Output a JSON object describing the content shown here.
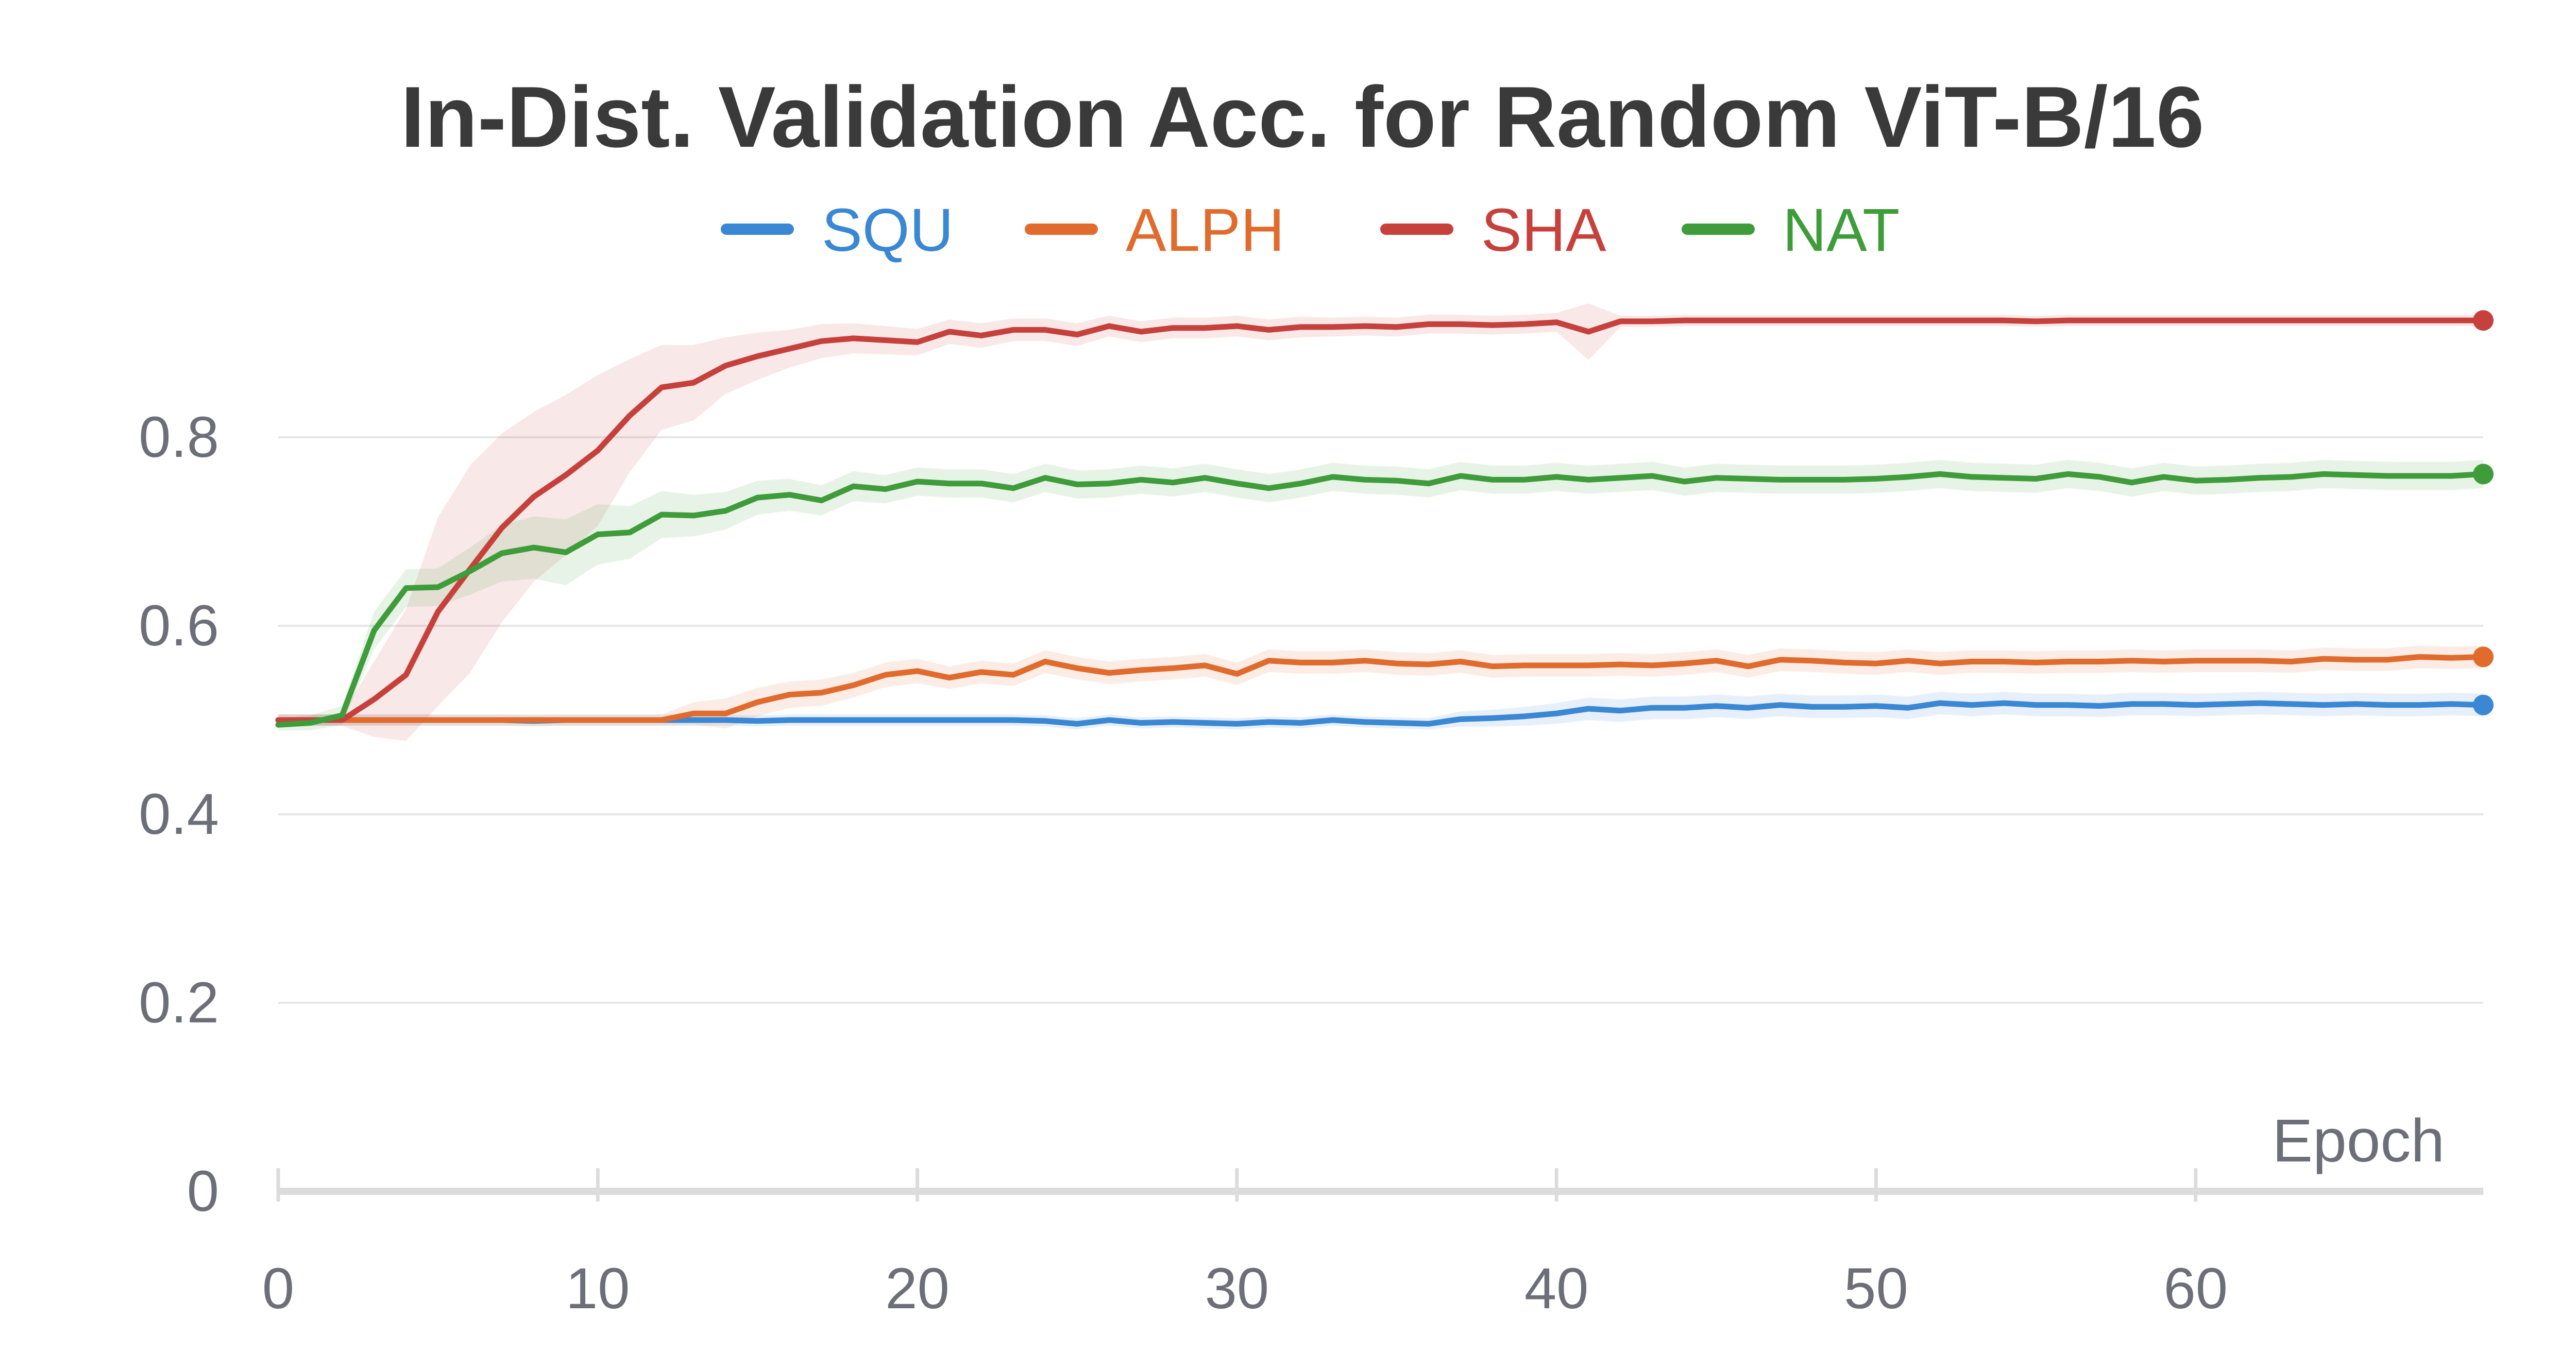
{
  "chart_data": {
    "type": "line",
    "title": "In-Dist. Validation Acc. for Random ViT-B/16",
    "xlabel": "Epoch",
    "ylabel": "",
    "xlim": [
      0,
      69
    ],
    "ylim": [
      0,
      0.95
    ],
    "x_ticks": [
      0,
      10,
      20,
      30,
      40,
      50,
      60
    ],
    "y_ticks": [
      0,
      0.2,
      0.4,
      0.6,
      0.8
    ],
    "x_tick_labels": [
      "0",
      "10",
      "20",
      "30",
      "40",
      "50",
      "60"
    ],
    "y_tick_labels": [
      "0",
      "0.2",
      "0.4",
      "0.6",
      "0.8"
    ],
    "grid": true,
    "legend_position": "top-center",
    "series": [
      {
        "name": "SQU",
        "color": "#3a87d4",
        "values": [
          0.5,
          0.5,
          0.5,
          0.5,
          0.5,
          0.5,
          0.5,
          0.5,
          0.499,
          0.5,
          0.5,
          0.5,
          0.5,
          0.5,
          0.5,
          0.499,
          0.5,
          0.5,
          0.5,
          0.5,
          0.5,
          0.5,
          0.5,
          0.5,
          0.499,
          0.496,
          0.5,
          0.497,
          0.498,
          0.497,
          0.496,
          0.498,
          0.497,
          0.5,
          0.498,
          0.497,
          0.496,
          0.501,
          0.502,
          0.504,
          0.507,
          0.512,
          0.51,
          0.513,
          0.513,
          0.515,
          0.513,
          0.516,
          0.514,
          0.514,
          0.515,
          0.513,
          0.518,
          0.516,
          0.518,
          0.516,
          0.516,
          0.515,
          0.517,
          0.517,
          0.516,
          0.517,
          0.518,
          0.517,
          0.516,
          0.517,
          0.516,
          0.516,
          0.517,
          0.516
        ],
        "band": [
          0.006,
          0.006,
          0.006,
          0.006,
          0.006,
          0.006,
          0.006,
          0.006,
          0.006,
          0.006,
          0.006,
          0.006,
          0.006,
          0.006,
          0.006,
          0.006,
          0.006,
          0.006,
          0.006,
          0.006,
          0.006,
          0.006,
          0.006,
          0.006,
          0.006,
          0.006,
          0.006,
          0.006,
          0.006,
          0.006,
          0.006,
          0.006,
          0.006,
          0.006,
          0.006,
          0.006,
          0.006,
          0.008,
          0.009,
          0.01,
          0.011,
          0.012,
          0.012,
          0.012,
          0.012,
          0.012,
          0.012,
          0.012,
          0.012,
          0.012,
          0.012,
          0.012,
          0.012,
          0.012,
          0.012,
          0.012,
          0.012,
          0.012,
          0.012,
          0.012,
          0.012,
          0.012,
          0.012,
          0.012,
          0.012,
          0.012,
          0.012,
          0.012,
          0.012,
          0.012
        ]
      },
      {
        "name": "ALPH",
        "color": "#e06b2c",
        "values": [
          0.5,
          0.5,
          0.5,
          0.5,
          0.5,
          0.5,
          0.5,
          0.5,
          0.5,
          0.5,
          0.5,
          0.5,
          0.5,
          0.507,
          0.507,
          0.519,
          0.527,
          0.529,
          0.537,
          0.548,
          0.552,
          0.545,
          0.551,
          0.548,
          0.562,
          0.555,
          0.55,
          0.553,
          0.555,
          0.558,
          0.549,
          0.563,
          0.561,
          0.561,
          0.563,
          0.56,
          0.559,
          0.562,
          0.557,
          0.558,
          0.558,
          0.558,
          0.559,
          0.558,
          0.56,
          0.563,
          0.557,
          0.564,
          0.563,
          0.561,
          0.56,
          0.563,
          0.56,
          0.562,
          0.562,
          0.561,
          0.562,
          0.562,
          0.563,
          0.562,
          0.563,
          0.563,
          0.563,
          0.562,
          0.565,
          0.564,
          0.564,
          0.567,
          0.566,
          0.567
        ],
        "band": [
          0.006,
          0.006,
          0.006,
          0.006,
          0.006,
          0.006,
          0.006,
          0.006,
          0.006,
          0.006,
          0.006,
          0.006,
          0.006,
          0.012,
          0.016,
          0.015,
          0.014,
          0.014,
          0.013,
          0.013,
          0.013,
          0.012,
          0.012,
          0.012,
          0.012,
          0.012,
          0.012,
          0.012,
          0.012,
          0.012,
          0.012,
          0.012,
          0.012,
          0.012,
          0.012,
          0.012,
          0.012,
          0.012,
          0.012,
          0.012,
          0.012,
          0.012,
          0.012,
          0.012,
          0.012,
          0.012,
          0.012,
          0.012,
          0.012,
          0.012,
          0.012,
          0.012,
          0.012,
          0.012,
          0.012,
          0.012,
          0.012,
          0.012,
          0.012,
          0.012,
          0.012,
          0.012,
          0.012,
          0.012,
          0.012,
          0.012,
          0.012,
          0.012,
          0.012,
          0.012
        ]
      },
      {
        "name": "SHA",
        "color": "#c6403c",
        "values": [
          0.5,
          0.5,
          0.5,
          0.522,
          0.548,
          0.615,
          0.66,
          0.704,
          0.737,
          0.76,
          0.786,
          0.823,
          0.853,
          0.858,
          0.876,
          0.886,
          0.894,
          0.902,
          0.905,
          0.903,
          0.901,
          0.912,
          0.908,
          0.914,
          0.914,
          0.909,
          0.918,
          0.912,
          0.916,
          0.916,
          0.918,
          0.914,
          0.917,
          0.917,
          0.918,
          0.917,
          0.92,
          0.92,
          0.919,
          0.92,
          0.922,
          0.912,
          0.923,
          0.923,
          0.924,
          0.924,
          0.924,
          0.924,
          0.924,
          0.924,
          0.924,
          0.924,
          0.924,
          0.924,
          0.924,
          0.923,
          0.924,
          0.924,
          0.924,
          0.924,
          0.924,
          0.924,
          0.924,
          0.924,
          0.924,
          0.924,
          0.924,
          0.924,
          0.924,
          0.924
        ],
        "band": [
          0.006,
          0.006,
          0.006,
          0.04,
          0.07,
          0.1,
          0.11,
          0.1,
          0.09,
          0.085,
          0.08,
          0.06,
          0.045,
          0.04,
          0.03,
          0.025,
          0.02,
          0.018,
          0.016,
          0.015,
          0.014,
          0.013,
          0.013,
          0.012,
          0.012,
          0.012,
          0.011,
          0.011,
          0.011,
          0.011,
          0.011,
          0.011,
          0.011,
          0.01,
          0.01,
          0.01,
          0.01,
          0.01,
          0.01,
          0.01,
          0.01,
          0.03,
          0.006,
          0.006,
          0.006,
          0.006,
          0.006,
          0.006,
          0.006,
          0.006,
          0.006,
          0.006,
          0.006,
          0.006,
          0.006,
          0.006,
          0.006,
          0.006,
          0.006,
          0.006,
          0.006,
          0.006,
          0.006,
          0.006,
          0.006,
          0.006,
          0.006,
          0.006,
          0.006,
          0.006
        ]
      },
      {
        "name": "NAT",
        "color": "#3e9c3a",
        "values": [
          0.495,
          0.497,
          0.505,
          0.595,
          0.64,
          0.641,
          0.658,
          0.677,
          0.683,
          0.678,
          0.697,
          0.699,
          0.718,
          0.717,
          0.722,
          0.736,
          0.739,
          0.733,
          0.748,
          0.745,
          0.753,
          0.751,
          0.751,
          0.746,
          0.757,
          0.75,
          0.751,
          0.755,
          0.752,
          0.757,
          0.751,
          0.746,
          0.751,
          0.758,
          0.755,
          0.754,
          0.751,
          0.759,
          0.755,
          0.755,
          0.758,
          0.755,
          0.757,
          0.759,
          0.753,
          0.757,
          0.756,
          0.755,
          0.755,
          0.755,
          0.756,
          0.758,
          0.761,
          0.758,
          0.757,
          0.756,
          0.761,
          0.758,
          0.752,
          0.758,
          0.754,
          0.755,
          0.757,
          0.758,
          0.761,
          0.76,
          0.759,
          0.759,
          0.759,
          0.761
        ],
        "band": [
          0.006,
          0.008,
          0.01,
          0.02,
          0.02,
          0.02,
          0.025,
          0.03,
          0.033,
          0.035,
          0.032,
          0.028,
          0.025,
          0.022,
          0.02,
          0.018,
          0.017,
          0.016,
          0.016,
          0.015,
          0.015,
          0.015,
          0.015,
          0.015,
          0.015,
          0.015,
          0.015,
          0.015,
          0.015,
          0.015,
          0.015,
          0.015,
          0.015,
          0.015,
          0.015,
          0.015,
          0.015,
          0.015,
          0.015,
          0.015,
          0.015,
          0.015,
          0.015,
          0.015,
          0.015,
          0.015,
          0.015,
          0.015,
          0.015,
          0.015,
          0.015,
          0.015,
          0.015,
          0.015,
          0.015,
          0.015,
          0.015,
          0.015,
          0.015,
          0.015,
          0.015,
          0.015,
          0.015,
          0.015,
          0.015,
          0.015,
          0.015,
          0.015,
          0.015,
          0.015
        ]
      }
    ]
  }
}
